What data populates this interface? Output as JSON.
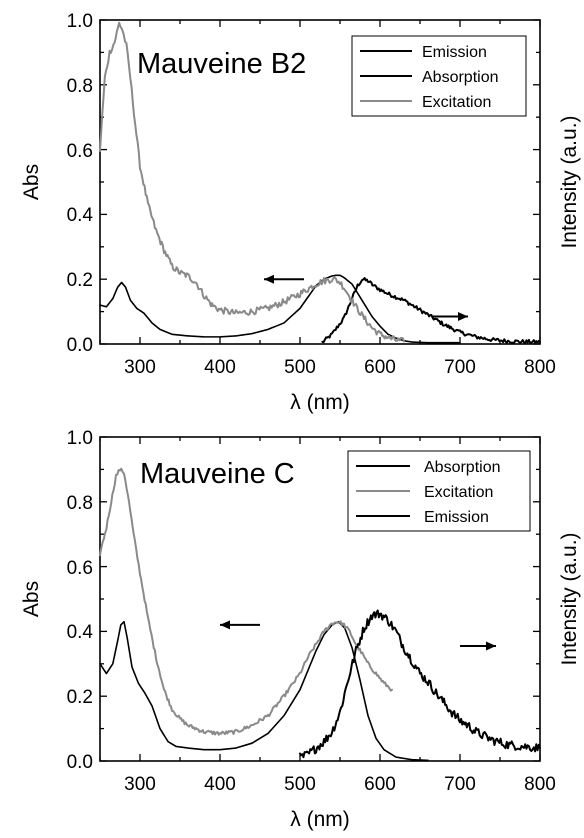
{
  "colors": {
    "black_series": "#000000",
    "gray_series": "#8a8a8a"
  },
  "chart_data": [
    {
      "type": "line",
      "title": "Mauveine B2",
      "xlabel": "λ (nm)",
      "ylabel": "Abs",
      "y2label": "Intensity (a.u.)",
      "xlim": [
        250,
        800
      ],
      "ylim": [
        0,
        1.0
      ],
      "xticks": [
        "300",
        "400",
        "500",
        "600",
        "700",
        "800"
      ],
      "yticks": [
        "0.0",
        "0.2",
        "0.4",
        "0.6",
        "0.8",
        "1.0"
      ],
      "legend_position": "top-right",
      "arrows": [
        {
          "direction": "left",
          "x_from": 505,
          "x_to": 455,
          "y": 0.2
        },
        {
          "direction": "right",
          "x_from": 665,
          "x_to": 710,
          "y": 0.085
        }
      ],
      "series": [
        {
          "name": "Emission",
          "color": "#000000",
          "noise": 0.006,
          "width": 2.0,
          "x": [
            528,
            540,
            555,
            565,
            572,
            578,
            585,
            592,
            600,
            610,
            620,
            630,
            640,
            650,
            660,
            670,
            680,
            690,
            700,
            720,
            740,
            760,
            780,
            800
          ],
          "y": [
            0.005,
            0.03,
            0.08,
            0.14,
            0.18,
            0.2,
            0.195,
            0.18,
            0.168,
            0.155,
            0.145,
            0.135,
            0.12,
            0.105,
            0.09,
            0.075,
            0.06,
            0.048,
            0.036,
            0.022,
            0.013,
            0.009,
            0.007,
            0.006
          ]
        },
        {
          "name": "Absorption",
          "color": "#000000",
          "noise": 0,
          "width": 1.6,
          "x": [
            250,
            258,
            266,
            272,
            277,
            282,
            288,
            296,
            305,
            315,
            325,
            340,
            360,
            380,
            400,
            420,
            440,
            460,
            480,
            500,
            510,
            520,
            530,
            540,
            545,
            550,
            555,
            560,
            565,
            570,
            580,
            590,
            600,
            610,
            620,
            630,
            640,
            650,
            660,
            680,
            700
          ],
          "y": [
            0.12,
            0.115,
            0.14,
            0.175,
            0.19,
            0.175,
            0.135,
            0.11,
            0.095,
            0.065,
            0.045,
            0.03,
            0.025,
            0.022,
            0.022,
            0.025,
            0.032,
            0.045,
            0.065,
            0.11,
            0.145,
            0.18,
            0.2,
            0.21,
            0.212,
            0.212,
            0.205,
            0.195,
            0.185,
            0.165,
            0.125,
            0.085,
            0.055,
            0.03,
            0.018,
            0.01,
            0.006,
            0.005,
            0.004,
            0.004,
            0.004
          ]
        },
        {
          "name": "Excitation",
          "color": "#8a8a8a",
          "noise": 0.01,
          "width": 2.0,
          "x": [
            250,
            256,
            262,
            268,
            274,
            278,
            283,
            288,
            294,
            300,
            310,
            320,
            330,
            340,
            350,
            360,
            370,
            380,
            390,
            400,
            420,
            440,
            460,
            480,
            500,
            510,
            520,
            530,
            540,
            545,
            550,
            555,
            560,
            570,
            580,
            590,
            600,
            610,
            620,
            630
          ],
          "y": [
            0.6,
            0.82,
            0.9,
            0.93,
            0.99,
            0.97,
            0.92,
            0.82,
            0.68,
            0.55,
            0.43,
            0.35,
            0.29,
            0.24,
            0.22,
            0.21,
            0.19,
            0.15,
            0.12,
            0.105,
            0.095,
            0.1,
            0.11,
            0.13,
            0.155,
            0.17,
            0.185,
            0.195,
            0.2,
            0.198,
            0.19,
            0.175,
            0.155,
            0.115,
            0.08,
            0.05,
            0.03,
            0.02,
            0.012,
            0.008
          ]
        }
      ]
    },
    {
      "type": "line",
      "title": "Mauveine C",
      "xlabel": "λ (nm)",
      "ylabel": "Abs",
      "y2label": "Intensity (a.u.)",
      "xlim": [
        250,
        800
      ],
      "ylim": [
        0,
        1.0
      ],
      "xticks": [
        "300",
        "400",
        "500",
        "600",
        "700",
        "800"
      ],
      "yticks": [
        "0.0",
        "0.2",
        "0.4",
        "0.6",
        "0.8",
        "1.0"
      ],
      "legend_position": "top-right",
      "arrows": [
        {
          "direction": "left",
          "x_from": 450,
          "x_to": 400,
          "y": 0.42
        },
        {
          "direction": "right",
          "x_from": 700,
          "x_to": 745,
          "y": 0.355
        }
      ],
      "series": [
        {
          "name": "Absorption",
          "color": "#000000",
          "noise": 0,
          "width": 1.6,
          "x": [
            250,
            258,
            266,
            272,
            276,
            280,
            284,
            290,
            298,
            306,
            315,
            325,
            335,
            345,
            360,
            380,
            400,
            420,
            440,
            460,
            480,
            500,
            510,
            520,
            530,
            540,
            548,
            556,
            565,
            575,
            585,
            595,
            605,
            620,
            640,
            660
          ],
          "y": [
            0.3,
            0.27,
            0.3,
            0.37,
            0.42,
            0.43,
            0.38,
            0.29,
            0.24,
            0.21,
            0.17,
            0.1,
            0.06,
            0.045,
            0.04,
            0.035,
            0.035,
            0.04,
            0.055,
            0.085,
            0.14,
            0.22,
            0.28,
            0.34,
            0.39,
            0.42,
            0.43,
            0.41,
            0.35,
            0.25,
            0.14,
            0.07,
            0.035,
            0.012,
            0.004,
            0.002
          ]
        },
        {
          "name": "Excitation",
          "color": "#8a8a8a",
          "noise": 0.006,
          "width": 2.0,
          "x": [
            250,
            258,
            264,
            270,
            275,
            280,
            285,
            292,
            300,
            310,
            320,
            330,
            340,
            350,
            360,
            370,
            380,
            400,
            420,
            440,
            460,
            480,
            500,
            510,
            520,
            530,
            540,
            548,
            555,
            562,
            570,
            578,
            585,
            595,
            605,
            615
          ],
          "y": [
            0.64,
            0.72,
            0.8,
            0.88,
            0.9,
            0.89,
            0.82,
            0.7,
            0.58,
            0.44,
            0.32,
            0.22,
            0.16,
            0.13,
            0.11,
            0.1,
            0.09,
            0.085,
            0.09,
            0.11,
            0.14,
            0.2,
            0.27,
            0.32,
            0.36,
            0.4,
            0.425,
            0.43,
            0.42,
            0.4,
            0.36,
            0.33,
            0.3,
            0.27,
            0.24,
            0.22
          ]
        },
        {
          "name": "Emission",
          "color": "#000000",
          "noise": 0.014,
          "width": 2.0,
          "x": [
            500,
            510,
            520,
            530,
            540,
            550,
            560,
            570,
            580,
            590,
            600,
            610,
            620,
            630,
            640,
            650,
            660,
            670,
            680,
            690,
            700,
            710,
            720,
            740,
            760,
            780,
            800
          ],
          "y": [
            0.01,
            0.02,
            0.04,
            0.06,
            0.09,
            0.15,
            0.25,
            0.34,
            0.41,
            0.45,
            0.455,
            0.435,
            0.4,
            0.35,
            0.31,
            0.27,
            0.245,
            0.21,
            0.18,
            0.15,
            0.125,
            0.11,
            0.09,
            0.065,
            0.05,
            0.045,
            0.04
          ]
        }
      ]
    }
  ]
}
